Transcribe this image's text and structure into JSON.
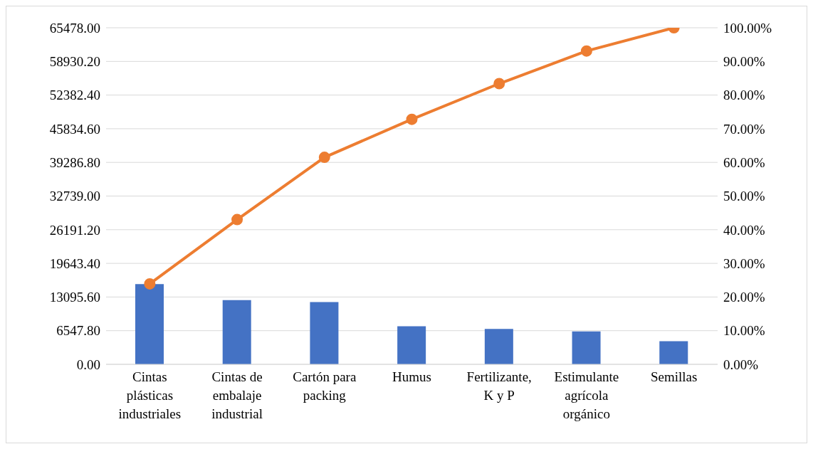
{
  "chart_data": {
    "type": "bar",
    "categories": [
      "Cintas plásticas industriales",
      "Cintas de embalaje industrial",
      "Cartón para packing",
      "Humus",
      "Fertilizante, K y P",
      "Estimulante agrícola orgánico",
      "Semillas"
    ],
    "series": [
      {
        "color": "#4472c4",
        "values": [
          15600,
          12500,
          12100,
          7400,
          6900,
          6400,
          4500
        ]
      },
      {
        "type": "line",
        "axis": "y2",
        "color": "#ed7d31",
        "values": [
          23.9,
          43.0,
          61.5,
          72.8,
          83.4,
          93.1,
          100
        ]
      }
    ],
    "ylim": [
      0,
      65478
    ],
    "yticks": [
      {
        "value": 0,
        "label": "0.00"
      },
      {
        "value": 6547.8,
        "label": "6547.80"
      },
      {
        "value": 13095.6,
        "label": "13095.60"
      },
      {
        "value": 19643.4,
        "label": "19643.40"
      },
      {
        "value": 26191.2,
        "label": "26191.20"
      },
      {
        "value": 32739,
        "label": "32739.00"
      },
      {
        "value": 39286.8,
        "label": "39286.80"
      },
      {
        "value": 45834.6,
        "label": "45834.60"
      },
      {
        "value": 52382.4,
        "label": "52382.40"
      },
      {
        "value": 58930.2,
        "label": "58930.20"
      },
      {
        "value": 65478,
        "label": "65478.00"
      }
    ],
    "y2lim": [
      0,
      100
    ],
    "y2ticks": [
      {
        "value": 0,
        "label": "0.00%"
      },
      {
        "value": 10,
        "label": "10.00%"
      },
      {
        "value": 20,
        "label": "20.00%"
      },
      {
        "value": 30,
        "label": "30.00%"
      },
      {
        "value": 40,
        "label": "40.00%"
      },
      {
        "value": 50,
        "label": "50.00%"
      },
      {
        "value": 60,
        "label": "60.00%"
      },
      {
        "value": 70,
        "label": "70.00%"
      },
      {
        "value": 80,
        "label": "80.00%"
      },
      {
        "value": 90,
        "label": "90.00%"
      },
      {
        "value": 100,
        "label": "100.00%"
      }
    ],
    "grid": "y",
    "marker": "circle",
    "line_style": "solid",
    "legend": false
  }
}
